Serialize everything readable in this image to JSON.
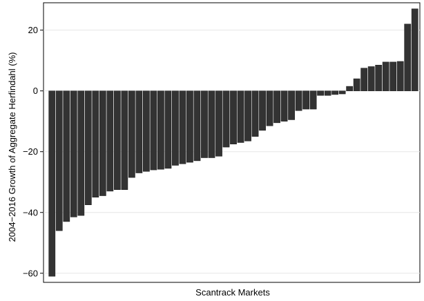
{
  "chart_data": {
    "type": "bar",
    "title": "",
    "xlabel": "Scantrack Markets",
    "ylabel": "2004−2016 Growth of Aggregate Herfindahl (%)",
    "ylim": [
      -63,
      29
    ],
    "yticks": [
      -60,
      -40,
      -20,
      0,
      20
    ],
    "ytick_labels": [
      "−60",
      "−40",
      "−20",
      "0",
      "20"
    ],
    "grid": true,
    "bar_color": "#333333",
    "values": [
      -61,
      -46,
      -43,
      -41.5,
      -41,
      -37.5,
      -35,
      -34.5,
      -33,
      -32.5,
      -32.5,
      -28.5,
      -27,
      -26.5,
      -26,
      -25.8,
      -25.5,
      -24.5,
      -24,
      -23.5,
      -23,
      -22,
      -22,
      -21.5,
      -18.5,
      -17.5,
      -17,
      -16.5,
      -15,
      -13,
      -11.5,
      -10.5,
      -10,
      -9.5,
      -6.5,
      -6,
      -6,
      -1.5,
      -1.5,
      -1.2,
      -1,
      1.5,
      4,
      7.5,
      8,
      8.5,
      9.5,
      9.5,
      9.7,
      22,
      27
    ]
  }
}
